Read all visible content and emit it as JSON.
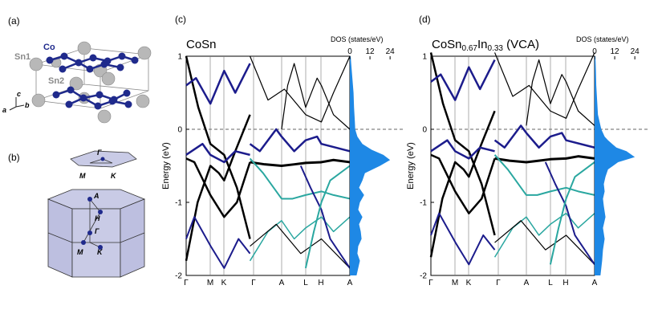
{
  "panel_labels": {
    "a": "(a)",
    "b": "(b)",
    "c": "(c)",
    "d": "(d)"
  },
  "panel_a": {
    "species": {
      "co": "Co",
      "sn1": "Sn1",
      "sn2": "Sn2"
    },
    "axes": {
      "a": "a",
      "b": "b",
      "c": "c"
    }
  },
  "panel_b": {
    "points": {
      "gamma": "Γ",
      "a": "A",
      "h": "H",
      "m": "M",
      "k": "K"
    },
    "surface_points": {
      "gamma": "Γ",
      "m": "M",
      "k": "K"
    }
  },
  "colors": {
    "band_black": "#000000",
    "band_blue": "#1c1c8c",
    "band_teal": "#2aa7a0",
    "dos_fill": "#1e88e5",
    "bz_fill": "#c9cbe6",
    "atom_blue": "#1f2a8c",
    "atom_grey": "#b5b5b5"
  },
  "chart_data": [
    {
      "type": "line",
      "title": "CoSn",
      "ylabel": "Energy (eV)",
      "ylim": [
        -2,
        1
      ],
      "yticks": [
        "1",
        "0",
        "-1",
        "-2"
      ],
      "k_labels": [
        "Γ",
        "M",
        "K",
        "Γ",
        "A",
        "L",
        "H",
        "A"
      ],
      "dos_label": "DOS (states/eV)",
      "dos_ticks": [
        "0",
        "12",
        "24"
      ],
      "dos": {
        "energy": [
          1.0,
          0.9,
          0.7,
          0.5,
          0.3,
          0.1,
          0.0,
          -0.1,
          -0.2,
          -0.28,
          -0.35,
          -0.42,
          -0.5,
          -0.6,
          -0.7,
          -0.8,
          -0.9,
          -1.0,
          -1.1,
          -1.2,
          -1.3,
          -1.4,
          -1.5,
          -1.6,
          -1.7,
          -1.8,
          -1.9,
          -2.0
        ],
        "states": [
          0.5,
          0.8,
          1.5,
          2.2,
          2.5,
          3.0,
          3.2,
          4.5,
          7.5,
          13.0,
          20.0,
          24.0,
          18.0,
          9.0,
          7.5,
          5.5,
          8.5,
          6.0,
          5.0,
          7.5,
          5.5,
          6.5,
          7.0,
          5.0,
          4.5,
          6.0,
          5.0,
          4.0
        ]
      }
    },
    {
      "type": "line",
      "title": "CoSn",
      "title_sub": "0.67",
      "title_mid": "In",
      "title_sub2": "0.33",
      "title_tail": " (VCA)",
      "ylabel": "Energy (eV)",
      "ylim": [
        -2,
        1
      ],
      "yticks": [
        "1",
        "0",
        "-1",
        "-2"
      ],
      "k_labels": [
        "Γ",
        "M",
        "K",
        "Γ",
        "A",
        "L",
        "H",
        "A"
      ],
      "dos_label": "DOS (states/eV)",
      "dos_ticks": [
        "0",
        "12",
        "24"
      ],
      "dos": {
        "energy": [
          1.0,
          0.8,
          0.6,
          0.4,
          0.2,
          0.1,
          0.0,
          -0.05,
          -0.1,
          -0.15,
          -0.2,
          -0.25,
          -0.3,
          -0.38,
          -0.45,
          -0.55,
          -0.65,
          -0.75,
          -0.85,
          -0.95,
          -1.05,
          -1.2,
          -1.35,
          -1.5,
          -1.65,
          -1.8,
          -1.9,
          -2.0
        ],
        "states": [
          0.5,
          0.8,
          1.0,
          1.5,
          2.0,
          3.0,
          4.0,
          5.0,
          6.0,
          8.0,
          10.5,
          13.0,
          19.0,
          24.0,
          14.0,
          8.0,
          6.5,
          5.5,
          6.0,
          5.0,
          5.5,
          6.5,
          5.0,
          6.0,
          5.0,
          4.5,
          4.0,
          3.5
        ]
      }
    }
  ]
}
